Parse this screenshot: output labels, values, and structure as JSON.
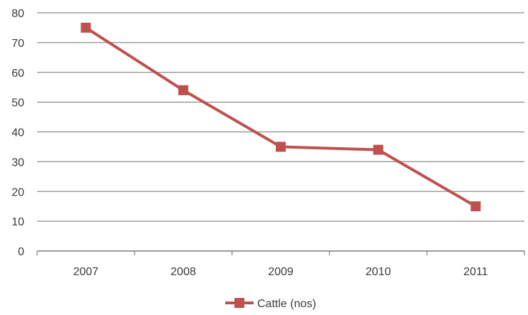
{
  "chart_data": {
    "type": "line",
    "title": "",
    "xlabel": "",
    "ylabel": "",
    "categories": [
      "2007",
      "2008",
      "2009",
      "2010",
      "2011"
    ],
    "series": [
      {
        "name": "Cattle (nos)",
        "values": [
          75,
          54,
          35,
          34,
          15
        ],
        "color": "#c0504d",
        "marker": "square"
      }
    ],
    "y_ticks": [
      "0",
      "10",
      "20",
      "30",
      "40",
      "50",
      "60",
      "70",
      "80"
    ],
    "ylim": [
      0,
      80
    ],
    "grid": true,
    "legend_position": "bottom"
  }
}
